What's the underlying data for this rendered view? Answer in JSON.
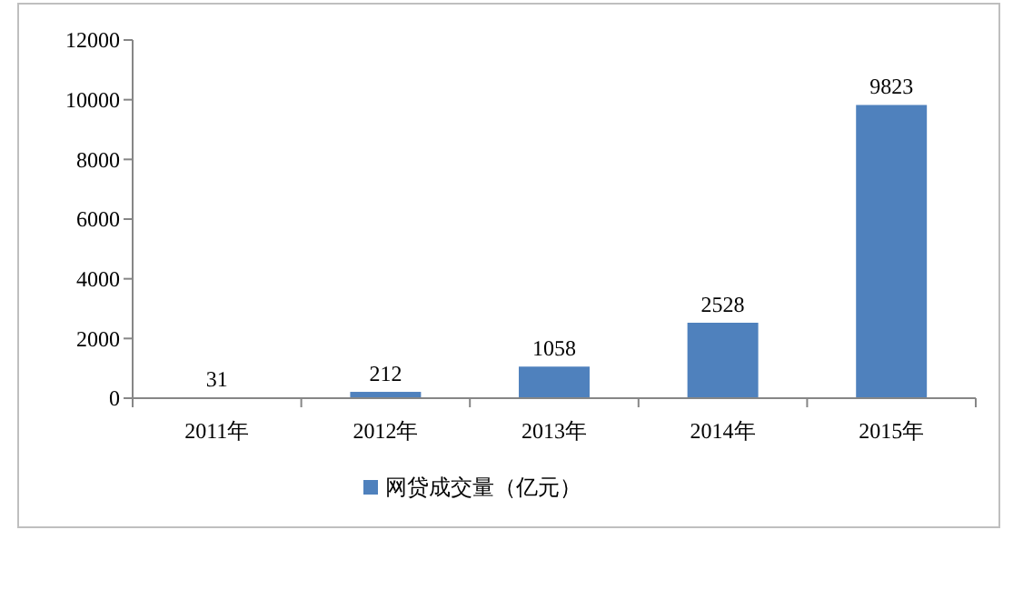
{
  "chart_data": {
    "type": "bar",
    "categories": [
      "2011年",
      "2012年",
      "2013年",
      "2014年",
      "2015年"
    ],
    "series": [
      {
        "name": "网贷成交量（亿元）",
        "color": "#4f81bd",
        "values": [
          31,
          212,
          1058,
          2528,
          9823
        ]
      }
    ],
    "ylim": [
      0,
      12000
    ],
    "yticks": [
      0,
      2000,
      4000,
      6000,
      8000,
      10000,
      12000
    ],
    "data_labels": true,
    "legend": "bottom",
    "grid": false
  }
}
